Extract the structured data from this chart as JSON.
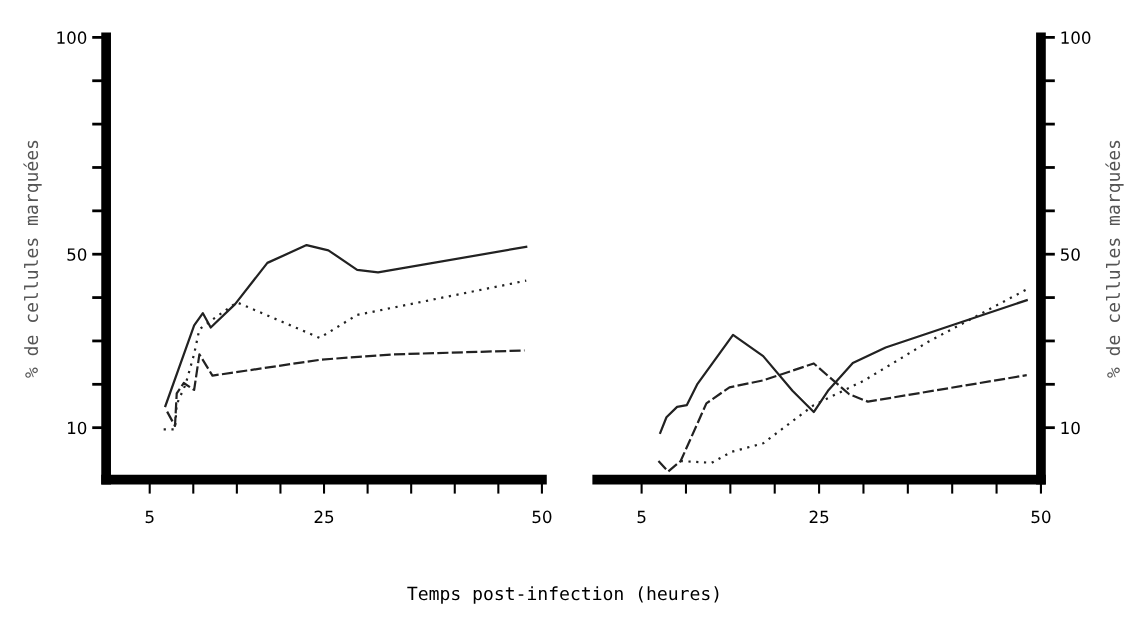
{
  "chart_data": [
    {
      "type": "line",
      "xlabel": "Temps post-infection (heures)",
      "ylabel": "% de cellules marquées",
      "xlim": [
        0,
        50
      ],
      "ylim": [
        -2,
        100
      ],
      "xticks": [
        5,
        {
          "value": 10,
          "label": null
        },
        {
          "value": 15,
          "label": null
        },
        {
          "value": 20,
          "label": null
        },
        25,
        {
          "value": 30,
          "label": null
        },
        {
          "value": 35,
          "label": null
        },
        {
          "value": 40,
          "label": null
        },
        {
          "value": 45,
          "label": null
        },
        50
      ],
      "yticks": [
        10,
        {
          "value": 20,
          "label": null
        },
        {
          "value": 30,
          "label": null
        },
        {
          "value": 40,
          "label": null
        },
        50,
        {
          "value": 60,
          "label": null
        },
        {
          "value": 70,
          "label": null
        },
        {
          "value": 80,
          "label": null
        },
        {
          "value": 90,
          "label": null
        },
        100
      ],
      "grid": false,
      "legend": false,
      "series": [
        {
          "color": "#222222",
          "line_style": "solid",
          "x": [
            6.8,
            10.1,
            11.1,
            12.0,
            14.8,
            18.5,
            23.0,
            25.5,
            28.8,
            31.2,
            48.2
          ],
          "values": [
            15.0,
            33.6,
            36.4,
            33.1,
            38.5,
            48.0,
            52.1,
            50.9,
            46.4,
            45.8,
            51.7
          ]
        },
        {
          "color": "#222222",
          "line_style": "dotted",
          "x": [
            6.6,
            7.9,
            8.1,
            9.1,
            10.1,
            10.7,
            12.4,
            15.0,
            24.5,
            28.8,
            48.2
          ],
          "values": [
            9.6,
            9.6,
            15.4,
            19.9,
            27.0,
            32.7,
            35.2,
            38.9,
            30.7,
            36.0,
            43.9
          ]
        },
        {
          "color": "#222222",
          "line_style": "dashed",
          "x": [
            7.0,
            7.9,
            8.1,
            8.9,
            10.1,
            10.7,
            12.2,
            24.7,
            32.9,
            48.0
          ],
          "values": [
            13.7,
            10.4,
            17.9,
            20.3,
            18.7,
            26.9,
            22.0,
            25.7,
            26.9,
            27.8
          ]
        }
      ]
    },
    {
      "type": "line",
      "y2label": "% de cellules marquées",
      "xlim": [
        0,
        50
      ],
      "y2lim": [
        -2,
        100
      ],
      "xticks": [
        5,
        {
          "value": 10,
          "label": null
        },
        {
          "value": 15,
          "label": null
        },
        {
          "value": 20,
          "label": null
        },
        25,
        {
          "value": 30,
          "label": null
        },
        {
          "value": 35,
          "label": null
        },
        {
          "value": 40,
          "label": null
        },
        {
          "value": 45,
          "label": null
        },
        50
      ],
      "y2ticks": [
        10,
        {
          "value": 20,
          "label": null
        },
        {
          "value": 30,
          "label": null
        },
        {
          "value": 40,
          "label": null
        },
        50,
        {
          "value": 60,
          "label": null
        },
        {
          "value": 70,
          "label": null
        },
        {
          "value": 80,
          "label": null
        },
        {
          "value": 90,
          "label": null
        },
        100
      ],
      "grid": false,
      "legend": false,
      "series": [
        {
          "color": "#222222",
          "line_style": "solid",
          "axis": "y2",
          "x": [
            7.1,
            7.8,
            9.0,
            10.1,
            11.3,
            15.3,
            18.7,
            22.0,
            24.4,
            26.0,
            28.8,
            32.5,
            48.4
          ],
          "values": [
            8.8,
            12.4,
            14.8,
            15.2,
            20.1,
            31.4,
            26.5,
            18.5,
            13.6,
            18.5,
            24.9,
            28.5,
            39.4
          ]
        },
        {
          "color": "#222222",
          "line_style": "dashed",
          "axis": "y2",
          "x": [
            6.9,
            8.0,
            9.4,
            12.3,
            14.9,
            18.7,
            24.4,
            28.4,
            30.5,
            48.4
          ],
          "values": [
            2.3,
            -0.1,
            2.3,
            15.6,
            19.3,
            20.9,
            24.8,
            17.7,
            16.0,
            22.1
          ]
        },
        {
          "color": "#222222",
          "line_style": "dotted",
          "axis": "y2",
          "x": [
            9.4,
            12.9,
            15.1,
            18.7,
            24.4,
            30.1,
            37.3,
            48.4
          ],
          "values": [
            2.3,
            1.9,
            4.4,
            6.4,
            15.2,
            20.9,
            29.8,
            41.9
          ]
        }
      ]
    }
  ]
}
